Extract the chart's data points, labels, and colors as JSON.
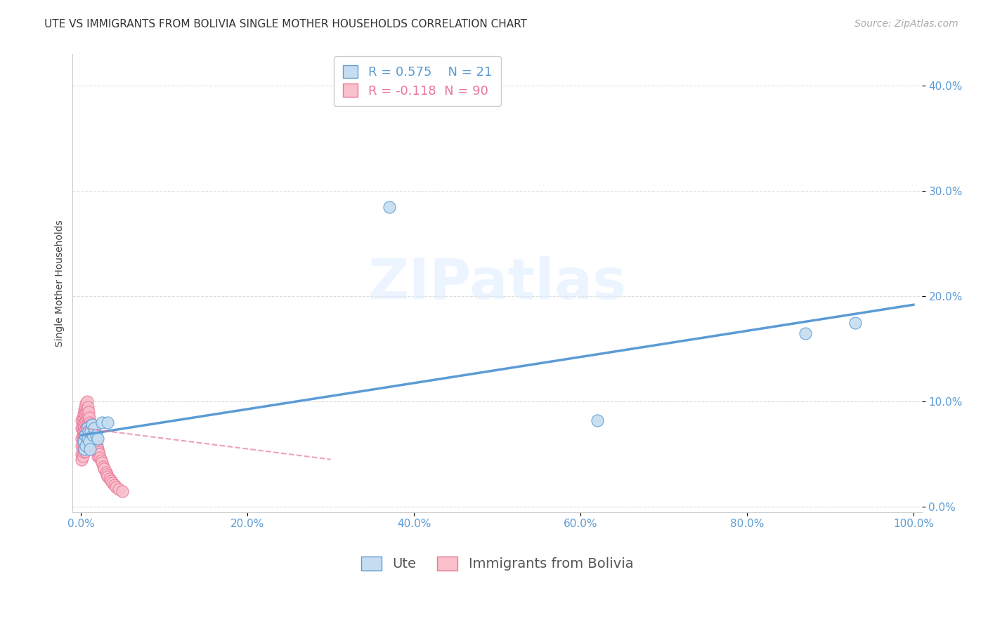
{
  "title": "UTE VS IMMIGRANTS FROM BOLIVIA SINGLE MOTHER HOUSEHOLDS CORRELATION CHART",
  "source": "Source: ZipAtlas.com",
  "ylabel_label": "Single Mother Households",
  "x_ticks": [
    0.0,
    0.2,
    0.4,
    0.6,
    0.8,
    1.0
  ],
  "x_tick_labels": [
    "0.0%",
    "20.0%",
    "40.0%",
    "60.0%",
    "80.0%",
    "100.0%"
  ],
  "y_ticks": [
    0.0,
    0.1,
    0.2,
    0.3,
    0.4
  ],
  "y_tick_labels": [
    "0.0%",
    "10.0%",
    "20.0%",
    "30.0%",
    "40.0%"
  ],
  "xlim": [
    -0.01,
    1.01
  ],
  "ylim": [
    -0.005,
    0.43
  ],
  "background_color": "#ffffff",
  "grid_color": "#dddddd",
  "ute_color": "#c5ddf0",
  "ute_edge_color": "#5b9bd5",
  "bolivia_color": "#f9c0cb",
  "bolivia_edge_color": "#e8789a",
  "ute_R": 0.575,
  "ute_N": 21,
  "bolivia_R": -0.118,
  "bolivia_N": 90,
  "ute_x": [
    0.003,
    0.004,
    0.005,
    0.006,
    0.007,
    0.008,
    0.009,
    0.01,
    0.011,
    0.012,
    0.013,
    0.014,
    0.016,
    0.018,
    0.02,
    0.025,
    0.032,
    0.37,
    0.62,
    0.87,
    0.93
  ],
  "ute_y": [
    0.062,
    0.055,
    0.068,
    0.058,
    0.075,
    0.065,
    0.072,
    0.062,
    0.055,
    0.072,
    0.078,
    0.068,
    0.075,
    0.068,
    0.065,
    0.08,
    0.08,
    0.285,
    0.082,
    0.165,
    0.175
  ],
  "bolivia_x": [
    0.001,
    0.001,
    0.001,
    0.001,
    0.001,
    0.001,
    0.002,
    0.002,
    0.002,
    0.002,
    0.002,
    0.002,
    0.002,
    0.003,
    0.003,
    0.003,
    0.003,
    0.003,
    0.003,
    0.004,
    0.004,
    0.004,
    0.004,
    0.004,
    0.005,
    0.005,
    0.005,
    0.005,
    0.005,
    0.005,
    0.006,
    0.006,
    0.006,
    0.006,
    0.006,
    0.007,
    0.007,
    0.007,
    0.007,
    0.007,
    0.008,
    0.008,
    0.008,
    0.008,
    0.008,
    0.009,
    0.009,
    0.009,
    0.009,
    0.009,
    0.01,
    0.01,
    0.01,
    0.01,
    0.011,
    0.011,
    0.011,
    0.012,
    0.012,
    0.012,
    0.013,
    0.013,
    0.014,
    0.014,
    0.015,
    0.015,
    0.016,
    0.016,
    0.017,
    0.018,
    0.019,
    0.02,
    0.02,
    0.021,
    0.022,
    0.023,
    0.024,
    0.025,
    0.027,
    0.028,
    0.03,
    0.031,
    0.032,
    0.034,
    0.036,
    0.038,
    0.04,
    0.042,
    0.045,
    0.05
  ],
  "bolivia_y": [
    0.065,
    0.075,
    0.082,
    0.058,
    0.05,
    0.045,
    0.068,
    0.078,
    0.062,
    0.055,
    0.085,
    0.072,
    0.048,
    0.088,
    0.08,
    0.072,
    0.065,
    0.058,
    0.052,
    0.092,
    0.084,
    0.076,
    0.068,
    0.06,
    0.095,
    0.088,
    0.08,
    0.072,
    0.062,
    0.053,
    0.098,
    0.09,
    0.082,
    0.074,
    0.066,
    0.1,
    0.092,
    0.084,
    0.076,
    0.068,
    0.095,
    0.087,
    0.079,
    0.071,
    0.063,
    0.09,
    0.082,
    0.074,
    0.066,
    0.058,
    0.085,
    0.077,
    0.069,
    0.061,
    0.08,
    0.072,
    0.064,
    0.078,
    0.07,
    0.062,
    0.075,
    0.067,
    0.072,
    0.064,
    0.07,
    0.062,
    0.068,
    0.06,
    0.065,
    0.062,
    0.058,
    0.055,
    0.048,
    0.052,
    0.05,
    0.047,
    0.044,
    0.042,
    0.038,
    0.036,
    0.033,
    0.031,
    0.029,
    0.027,
    0.025,
    0.023,
    0.021,
    0.019,
    0.017,
    0.015
  ],
  "ute_line_x": [
    0.0,
    1.0
  ],
  "ute_line_y": [
    0.068,
    0.192
  ],
  "bolivia_line_x": [
    0.0,
    0.3
  ],
  "bolivia_line_y": [
    0.075,
    0.045
  ],
  "title_fontsize": 11,
  "axis_label_fontsize": 10,
  "tick_fontsize": 11,
  "legend_fontsize": 13,
  "source_fontsize": 10
}
